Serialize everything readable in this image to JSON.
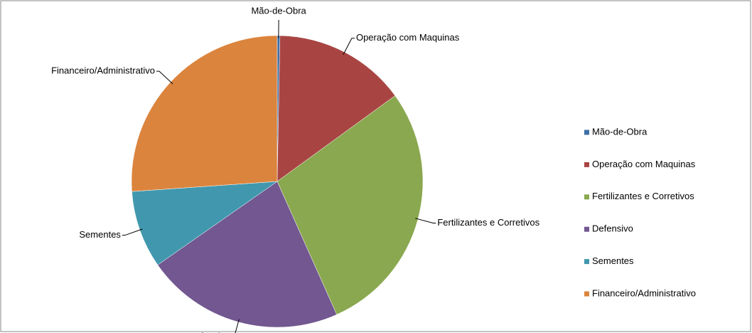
{
  "chart_data": {
    "type": "pie",
    "categories": [
      "Mão-de-Obra",
      "Operação com Maquinas",
      "Fertilizantes e Corretivos",
      "Defensivo",
      "Sementes",
      "Financeiro/Administrativo"
    ],
    "values": [
      0.3,
      14.7,
      28.3,
      22,
      8.6,
      26.1
    ],
    "colors": [
      "#3d6fa6",
      "#a84543",
      "#8aa84f",
      "#725790",
      "#4198ae",
      "#db843d"
    ],
    "legend": "right"
  }
}
